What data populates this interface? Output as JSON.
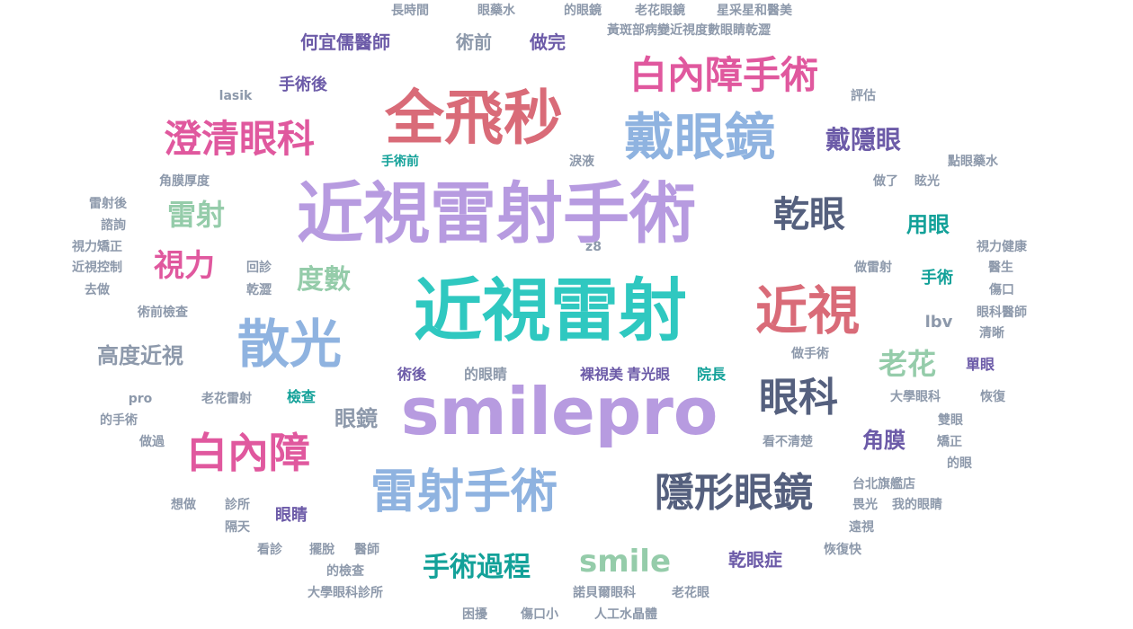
{
  "palette": {
    "lavender": "#b79be0",
    "teal": "#2fc8c0",
    "rose": "#d96b78",
    "sky": "#8fb3e0",
    "pink": "#e0589e",
    "slate": "#55607e",
    "sage": "#95ccaa",
    "deepteal": "#13a199",
    "purple": "#6c5ba8",
    "gray": "#8d99ab"
  },
  "words": [
    {
      "text": "近視雷射手術",
      "color": "lavender"
    },
    {
      "text": "近視雷射",
      "color": "teal"
    },
    {
      "text": "smilepro",
      "color": "lavender"
    },
    {
      "text": "全飛秒",
      "color": "rose"
    },
    {
      "text": "戴眼鏡",
      "color": "sky"
    },
    {
      "text": "雷射手術",
      "color": "sky"
    },
    {
      "text": "隱形眼鏡",
      "color": "slate"
    },
    {
      "text": "散光",
      "color": "sky"
    },
    {
      "text": "近視",
      "color": "rose"
    },
    {
      "text": "眼科",
      "color": "slate"
    },
    {
      "text": "白內障",
      "color": "pink"
    },
    {
      "text": "白內障手術",
      "color": "pink"
    },
    {
      "text": "澄清眼科",
      "color": "pink"
    },
    {
      "text": "乾眼",
      "color": "slate"
    },
    {
      "text": "smile",
      "color": "sage"
    },
    {
      "text": "老花",
      "color": "sage"
    },
    {
      "text": "視力",
      "color": "pink"
    },
    {
      "text": "度數",
      "color": "sage"
    },
    {
      "text": "雷射",
      "color": "sage"
    },
    {
      "text": "手術過程",
      "color": "deepteal"
    },
    {
      "text": "戴隱眼",
      "color": "purple"
    },
    {
      "text": "高度近視",
      "color": "gray"
    },
    {
      "text": "眼鏡",
      "color": "gray"
    },
    {
      "text": "角膜",
      "color": "purple"
    },
    {
      "text": "用眼",
      "color": "deepteal"
    },
    {
      "text": "乾眼症",
      "color": "purple"
    },
    {
      "text": "何宜儒醫師",
      "color": "purple"
    },
    {
      "text": "術前",
      "color": "gray"
    },
    {
      "text": "做完",
      "color": "purple"
    },
    {
      "text": "lbv",
      "color": "gray"
    },
    {
      "text": "手術",
      "color": "deepteal"
    },
    {
      "text": "裸視美",
      "color": "purple"
    },
    {
      "text": "青光眼",
      "color": "purple"
    },
    {
      "text": "院長",
      "color": "deepteal"
    },
    {
      "text": "手術後",
      "color": "purple"
    },
    {
      "text": "術後",
      "color": "purple"
    },
    {
      "text": "的眼睛",
      "color": "gray"
    },
    {
      "text": "眼睛",
      "color": "purple"
    },
    {
      "text": "單眼",
      "color": "purple"
    },
    {
      "text": "檢查",
      "color": "deepteal"
    },
    {
      "text": "做手術",
      "color": "gray"
    },
    {
      "text": "長時間",
      "color": "gray"
    },
    {
      "text": "眼藥水",
      "color": "gray"
    },
    {
      "text": "的眼鏡",
      "color": "gray"
    },
    {
      "text": "老花眼鏡",
      "color": "gray"
    },
    {
      "text": "星采星和醫美",
      "color": "gray"
    },
    {
      "text": "黃斑部病變近視度數眼睛乾澀",
      "color": "gray"
    },
    {
      "text": "lasik",
      "color": "gray"
    },
    {
      "text": "評估",
      "color": "gray"
    },
    {
      "text": "手術前",
      "color": "deepteal"
    },
    {
      "text": "淚液",
      "color": "gray"
    },
    {
      "text": "點眼藥水",
      "color": "gray"
    },
    {
      "text": "角膜厚度",
      "color": "gray"
    },
    {
      "text": "做了",
      "color": "gray"
    },
    {
      "text": "眩光",
      "color": "gray"
    },
    {
      "text": "雷射後",
      "color": "gray"
    },
    {
      "text": "諮詢",
      "color": "gray"
    },
    {
      "text": "視力矯正",
      "color": "gray"
    },
    {
      "text": "z8",
      "color": "gray"
    },
    {
      "text": "視力健康",
      "color": "gray"
    },
    {
      "text": "近視控制",
      "color": "gray"
    },
    {
      "text": "回診",
      "color": "gray"
    },
    {
      "text": "做雷射",
      "color": "gray"
    },
    {
      "text": "醫生",
      "color": "gray"
    },
    {
      "text": "去做",
      "color": "gray"
    },
    {
      "text": "乾澀",
      "color": "gray"
    },
    {
      "text": "傷口",
      "color": "gray"
    },
    {
      "text": "術前檢查",
      "color": "gray"
    },
    {
      "text": "眼科醫師",
      "color": "gray"
    },
    {
      "text": "清晰",
      "color": "gray"
    },
    {
      "text": "pro",
      "color": "gray"
    },
    {
      "text": "老花雷射",
      "color": "gray"
    },
    {
      "text": "大學眼科",
      "color": "gray"
    },
    {
      "text": "恢復",
      "color": "gray"
    },
    {
      "text": "的手術",
      "color": "gray"
    },
    {
      "text": "雙眼",
      "color": "gray"
    },
    {
      "text": "做過",
      "color": "gray"
    },
    {
      "text": "看不清楚",
      "color": "gray"
    },
    {
      "text": "矯正",
      "color": "gray"
    },
    {
      "text": "的眼",
      "color": "gray"
    },
    {
      "text": "台北旗艦店",
      "color": "gray"
    },
    {
      "text": "想做",
      "color": "gray"
    },
    {
      "text": "診所",
      "color": "gray"
    },
    {
      "text": "畏光",
      "color": "gray"
    },
    {
      "text": "我的眼睛",
      "color": "gray"
    },
    {
      "text": "隔天",
      "color": "gray"
    },
    {
      "text": "遠視",
      "color": "gray"
    },
    {
      "text": "看診",
      "color": "gray"
    },
    {
      "text": "擺脫",
      "color": "gray"
    },
    {
      "text": "醫師",
      "color": "gray"
    },
    {
      "text": "恢復快",
      "color": "gray"
    },
    {
      "text": "的檢查",
      "color": "gray"
    },
    {
      "text": "大學眼科診所",
      "color": "gray"
    },
    {
      "text": "諾貝爾眼科",
      "color": "gray"
    },
    {
      "text": "老花眼",
      "color": "gray"
    },
    {
      "text": "困擾",
      "color": "gray"
    },
    {
      "text": "傷口小",
      "color": "gray"
    },
    {
      "text": "人工水晶體",
      "color": "gray"
    }
  ]
}
